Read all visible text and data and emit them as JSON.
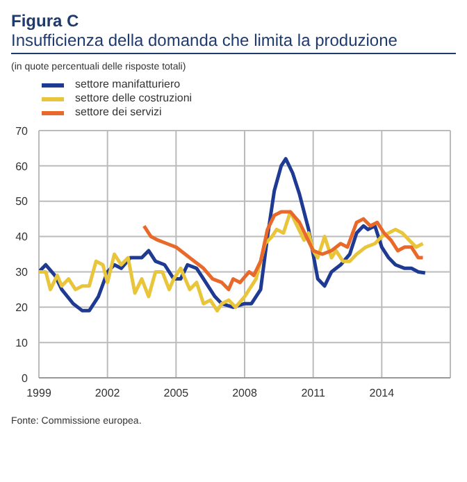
{
  "chart_data": {
    "type": "line",
    "title": "Figura C",
    "subtitle": "Insufficienza della domanda che limita la produzione",
    "xlim": [
      1999,
      2017
    ],
    "xticks": [
      1999,
      2002,
      2005,
      2008,
      2011,
      2014
    ],
    "ylim": [
      0,
      70
    ],
    "yticks": [
      0,
      10,
      20,
      30,
      40,
      50,
      60,
      70
    ],
    "grid": true,
    "legend": "top left",
    "marker": "none",
    "line_style": "solid",
    "series": [
      {
        "name": "settore manifatturiero",
        "color": "#1f3a93",
        "x": [
          1999,
          1999.3,
          1999.7,
          2000,
          2000.5,
          2000.9,
          2001.2,
          2001.6,
          2002,
          2002.3,
          2002.6,
          2003,
          2003.5,
          2003.8,
          2004.1,
          2004.5,
          2004.9,
          2005.2,
          2005.5,
          2005.9,
          2006.3,
          2006.7,
          2007,
          2007.5,
          2008,
          2008.3,
          2008.7,
          2009,
          2009.3,
          2009.6,
          2009.8,
          2010.1,
          2010.4,
          2010.8,
          2011,
          2011.2,
          2011.5,
          2011.8,
          2012.2,
          2012.6,
          2012.9,
          2013.2,
          2013.4,
          2013.7,
          2014,
          2014.3,
          2014.6,
          2015,
          2015.3,
          2015.6,
          2015.9
        ],
        "values": [
          30,
          32,
          29,
          25,
          21,
          19,
          19,
          23,
          30,
          32,
          31,
          34,
          34,
          36,
          33,
          32,
          28,
          28,
          32,
          31,
          27,
          23,
          21,
          20,
          21,
          21,
          25,
          40,
          53,
          60,
          62,
          58,
          52,
          42,
          35,
          28,
          26,
          30,
          32,
          35,
          41,
          43,
          42,
          43,
          37,
          34,
          32,
          31,
          31,
          30,
          29.7
        ]
      },
      {
        "name": "settore delle costruzioni",
        "color": "#e8c53a",
        "x": [
          1999,
          1999.3,
          1999.5,
          1999.8,
          2000,
          2000.3,
          2000.6,
          2000.9,
          2001.2,
          2001.5,
          2001.8,
          2002,
          2002.3,
          2002.6,
          2002.9,
          2003.2,
          2003.5,
          2003.8,
          2004.1,
          2004.4,
          2004.7,
          2004.9,
          2005.2,
          2005.6,
          2005.9,
          2006.2,
          2006.5,
          2006.8,
          2007,
          2007.3,
          2007.6,
          2008,
          2008.2,
          2008.5,
          2008.9,
          2009.2,
          2009.4,
          2009.7,
          2010,
          2010.3,
          2010.6,
          2010.8,
          2011,
          2011.2,
          2011.5,
          2011.8,
          2012,
          2012.3,
          2012.6,
          2012.9,
          2013.3,
          2013.7,
          2014,
          2014.3,
          2014.6,
          2014.9,
          2015.2,
          2015.5,
          2015.8
        ],
        "values": [
          30,
          30,
          25,
          29,
          26,
          28,
          25,
          26,
          26,
          33,
          32,
          27,
          35,
          32,
          34,
          24,
          28,
          23,
          30,
          30,
          25,
          28,
          31,
          25,
          27,
          21,
          22,
          19,
          21,
          22,
          20,
          23,
          25,
          28,
          38,
          40,
          42,
          41,
          47,
          43,
          39,
          41,
          36,
          34,
          40,
          34,
          36,
          33,
          33,
          35,
          37,
          38,
          40,
          41,
          42,
          41,
          39,
          37,
          38
        ]
      },
      {
        "name": "settore dei servizi",
        "color": "#e8692a",
        "x": [
          2003.6,
          2003.9,
          2004.2,
          2004.6,
          2005,
          2005.4,
          2005.8,
          2006.2,
          2006.6,
          2007,
          2007.3,
          2007.5,
          2007.8,
          2008.2,
          2008.4,
          2008.7,
          2009,
          2009.3,
          2009.6,
          2010,
          2010.4,
          2010.7,
          2011,
          2011.4,
          2011.8,
          2012.2,
          2012.5,
          2012.9,
          2013.2,
          2013.5,
          2013.8,
          2014.1,
          2014.4,
          2014.7,
          2015,
          2015.3,
          2015.6,
          2015.8
        ],
        "values": [
          43,
          40,
          39,
          38,
          37,
          35,
          33,
          31,
          28,
          27,
          25,
          28,
          27,
          30,
          29,
          33,
          42,
          46,
          47,
          47,
          44,
          40,
          36,
          35,
          36,
          38,
          37,
          44,
          45,
          43,
          44,
          41,
          39,
          36,
          37,
          37,
          34,
          34
        ]
      }
    ],
    "annotations": [
      "(in quote percentuali delle risposte totali)",
      "Fonte: Commissione europea."
    ]
  }
}
